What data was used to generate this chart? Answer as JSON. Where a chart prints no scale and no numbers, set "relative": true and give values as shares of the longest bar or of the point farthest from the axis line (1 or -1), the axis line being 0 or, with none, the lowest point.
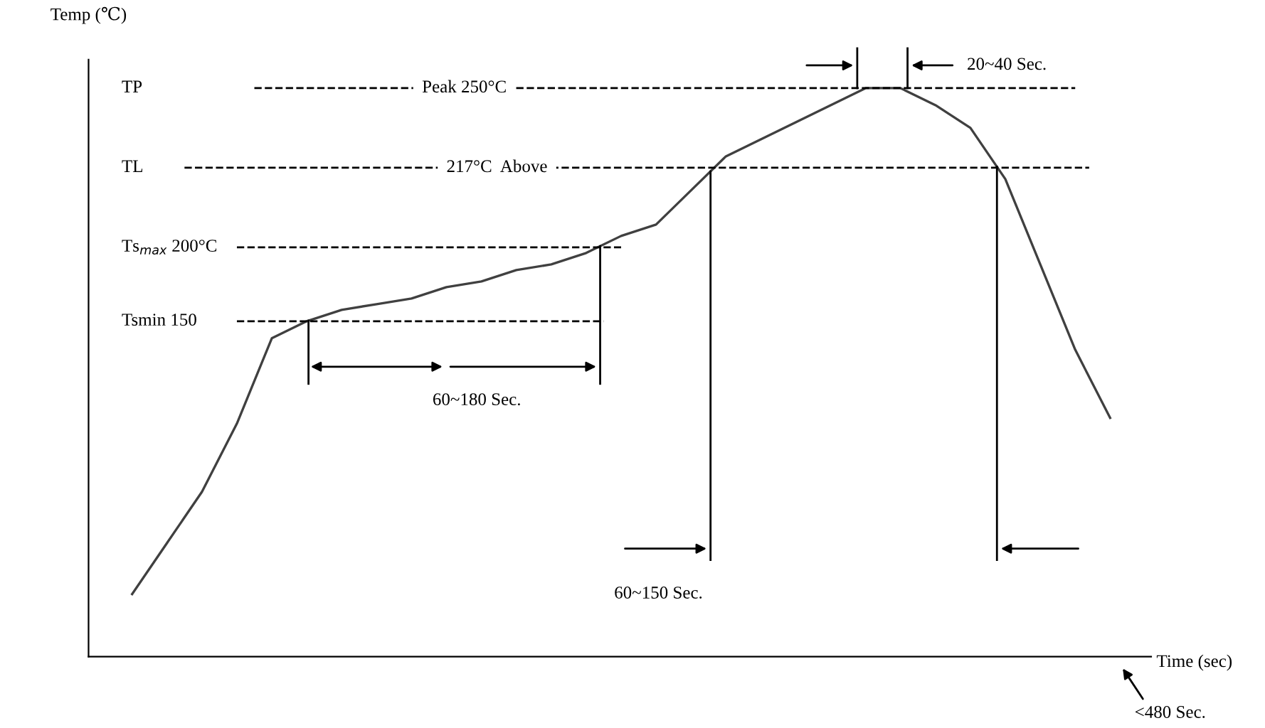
{
  "chart_data": {
    "type": "line",
    "relative": true,
    "xlabel": "Time (sec)",
    "ylabel": "Temp (℃)",
    "categories": [
      null,
      null,
      null,
      null,
      null,
      null,
      null,
      null,
      null,
      null,
      null,
      null,
      null,
      null,
      null,
      null,
      null,
      null,
      null,
      null,
      null,
      null,
      null,
      null,
      null,
      null,
      null,
      null,
      null
    ],
    "series": [
      {
        "color": "#404040",
        "values": [
          0.11,
          0.2,
          0.29,
          0.41,
          0.56,
          0.59,
          0.61,
          0.62,
          0.63,
          0.65,
          0.66,
          0.68,
          0.69,
          0.71,
          0.74,
          0.76,
          0.82,
          0.88,
          0.91,
          0.94,
          0.97,
          1.0,
          1.0,
          0.97,
          0.93,
          0.84,
          0.69,
          0.54,
          0.42
        ]
      }
    ],
    "ref_lines": [
      {
        "axis": "y",
        "value": 1.0,
        "label": "Peak 250°C",
        "line_style": "dashed",
        "color": "#000000"
      },
      {
        "axis": "y",
        "value": 0.86,
        "label": "217°C  Above",
        "line_style": "dashed",
        "color": "#000000"
      },
      {
        "axis": "y",
        "value": 0.72,
        "label": "Ts$_{max}$ 200°C",
        "line_style": "dashed",
        "color": "#000000"
      },
      {
        "axis": "y",
        "value": 0.59,
        "label": "Tsmin 150",
        "line_style": "dashed",
        "color": "#000000"
      }
    ],
    "annotations": [
      "TP",
      "TL",
      "60~180 Sec.",
      "60~150 Sec.",
      "20~40 Sec.",
      "<480 Sec."
    ],
    "grid": false,
    "legend": false,
    "line_style": "solid",
    "marker": "none"
  }
}
